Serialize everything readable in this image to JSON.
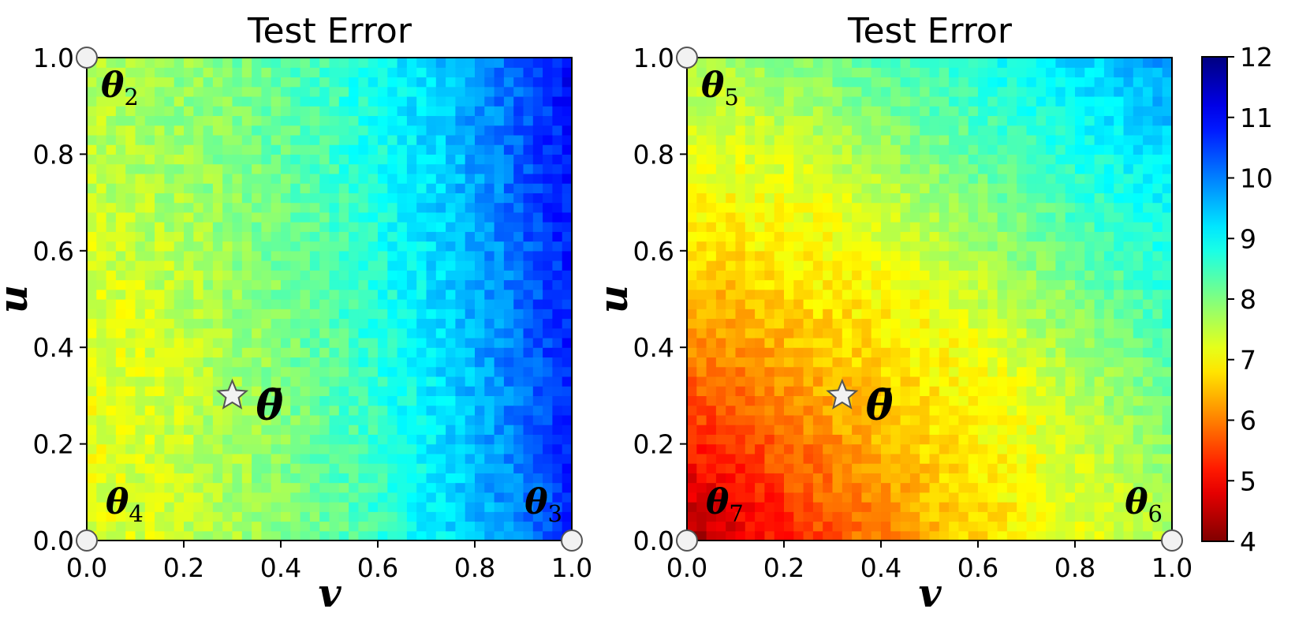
{
  "figure": {
    "colormap": "jet_r",
    "colors": {
      "marker_fill": "#f2f2f2",
      "marker_stroke": "#555555",
      "frame": "#000000"
    }
  },
  "chart_data": [
    {
      "type": "heatmap",
      "title": "Test Error",
      "xlabel": "v",
      "ylabel": "u",
      "xlim": [
        0,
        1
      ],
      "ylim": [
        0,
        1
      ],
      "xticks": [
        "0.0",
        "0.2",
        "0.4",
        "0.6",
        "0.8",
        "1.0"
      ],
      "yticks": [
        "0.0",
        "0.2",
        "0.4",
        "0.6",
        "0.8",
        "1.0"
      ],
      "grid": false,
      "resolution": 50,
      "corner_values": {
        "v0_u0": 7.2,
        "v1_u0": 10.3,
        "v0_u1": 7.6,
        "v1_u1": 10.6
      },
      "surface_shape": "right_side_high",
      "noise": 0.35,
      "vertices": [
        {
          "name": "θ",
          "sub": "2",
          "v": 0,
          "u": 1
        },
        {
          "name": "θ",
          "sub": "3",
          "v": 1,
          "u": 0
        },
        {
          "name": "θ",
          "sub": "4",
          "v": 0,
          "u": 0
        }
      ],
      "vertex_labels_at": [
        "top-left",
        "bottom-right",
        "bottom-left"
      ],
      "star": {
        "name": "θ̄",
        "v": 0.3,
        "u": 0.3
      }
    },
    {
      "type": "heatmap",
      "title": "Test Error",
      "xlabel": "v",
      "ylabel": "u",
      "xlim": [
        0,
        1
      ],
      "ylim": [
        0,
        1
      ],
      "xticks": [
        "0.0",
        "0.2",
        "0.4",
        "0.6",
        "0.8",
        "1.0"
      ],
      "yticks": [
        "0.0",
        "0.2",
        "0.4",
        "0.6",
        "0.8",
        "1.0"
      ],
      "grid": false,
      "resolution": 50,
      "corner_values": {
        "v0_u0": 4.2,
        "v1_u0": 7.0,
        "v0_u1": 7.0,
        "v1_u1": 9.8
      },
      "surface_shape": "diagonal_gradient",
      "noise": 0.3,
      "vertices": [
        {
          "name": "θ",
          "sub": "5",
          "v": 0,
          "u": 1
        },
        {
          "name": "θ",
          "sub": "6",
          "v": 1,
          "u": 0
        },
        {
          "name": "θ",
          "sub": "7",
          "v": 0,
          "u": 0
        }
      ],
      "vertex_labels_at": [
        "top-left",
        "bottom-right",
        "bottom-left"
      ],
      "star": {
        "name": "θ̄",
        "v": 0.32,
        "u": 0.3
      }
    }
  ],
  "colorbar": {
    "min": 4,
    "max": 12,
    "ticks": [
      "4",
      "5",
      "6",
      "7",
      "8",
      "9",
      "10",
      "11",
      "12"
    ],
    "placement": "right"
  }
}
